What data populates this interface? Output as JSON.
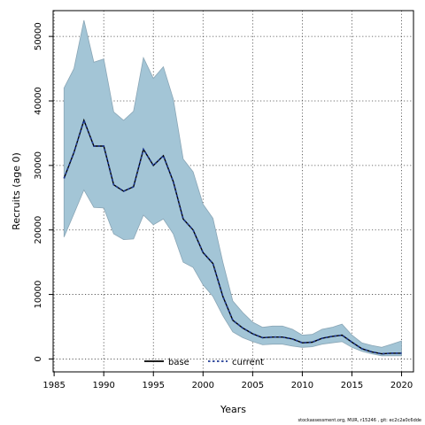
{
  "chart_data": {
    "type": "area",
    "xlabel": "Years",
    "ylabel": "Recruits (age 0)",
    "xlim": [
      1984.9,
      2021.2
    ],
    "ylim": [
      -2000,
      54000
    ],
    "x_ticks": [
      1985,
      1990,
      1995,
      2000,
      2005,
      2010,
      2015,
      2020
    ],
    "y_ticks": [
      0,
      10000,
      20000,
      30000,
      40000,
      50000
    ],
    "grid": true,
    "legend": {
      "placement": "bottom-center",
      "entries": [
        "base",
        "current"
      ]
    },
    "x": [
      1986,
      1987,
      1988,
      1989,
      1990,
      1991,
      1992,
      1993,
      1994,
      1995,
      1996,
      1997,
      1998,
      1999,
      2000,
      2001,
      2002,
      2003,
      2004,
      2005,
      2006,
      2007,
      2008,
      2009,
      2010,
      2011,
      2012,
      2013,
      2014,
      2015,
      2016,
      2017,
      2018,
      2019,
      2020
    ],
    "band": {
      "upper": [
        42000,
        45000,
        52500,
        46000,
        46500,
        38300,
        37000,
        38400,
        46700,
        43500,
        45300,
        40300,
        31000,
        29000,
        24000,
        21800,
        15000,
        9000,
        7200,
        5700,
        4900,
        5100,
        5100,
        4600,
        3700,
        3800,
        4600,
        4900,
        5400,
        3700,
        2500,
        2100,
        1800,
        2300,
        2800
      ],
      "lower": [
        18900,
        22500,
        26200,
        23500,
        23400,
        19400,
        18500,
        18600,
        22300,
        20800,
        21700,
        19400,
        15000,
        14200,
        11500,
        9700,
        6700,
        4200,
        3300,
        2700,
        2200,
        2300,
        2300,
        2000,
        1800,
        1900,
        2300,
        2500,
        2700,
        1800,
        1200,
        800,
        500,
        500,
        500
      ],
      "color": "#a3c5d6",
      "edge_color": "#8aa6b6"
    },
    "series": [
      {
        "name": "base",
        "color": "#000000",
        "style": "solid",
        "values": [
          28000,
          32000,
          37000,
          33000,
          33000,
          27000,
          26000,
          26700,
          32500,
          30000,
          31500,
          27500,
          21700,
          20000,
          16500,
          14800,
          9700,
          6000,
          4800,
          3900,
          3300,
          3400,
          3400,
          3100,
          2500,
          2600,
          3200,
          3500,
          3700,
          2600,
          1600,
          1100,
          800,
          900,
          900
        ]
      },
      {
        "name": "current",
        "color": "#1f3a93",
        "style": "dashed",
        "values": [
          28000,
          32000,
          37000,
          33000,
          33000,
          27000,
          26000,
          26700,
          32500,
          30000,
          31500,
          27500,
          21700,
          20000,
          16500,
          14800,
          9700,
          6000,
          4800,
          3900,
          3300,
          3400,
          3400,
          3100,
          2500,
          2600,
          3200,
          3500,
          3700,
          2600,
          1600,
          1100,
          800,
          900,
          900
        ]
      }
    ]
  },
  "footer": {
    "note": "stockassessment.org, MUR, r15246 , git: ec2c2a0c6dde"
  }
}
